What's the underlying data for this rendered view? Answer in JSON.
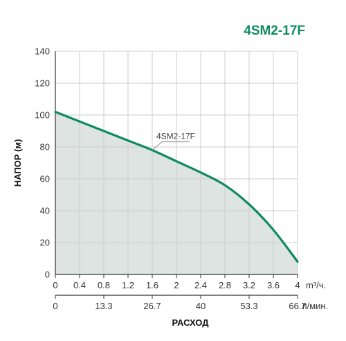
{
  "title": "4SM2-17F",
  "colors": {
    "accent": "#0e8c5e",
    "fill": "#dde4e2",
    "grid": "#cccccc",
    "axis": "#333333"
  },
  "chart_data": {
    "type": "area",
    "title": "4SM2-17F",
    "ylabel": "НАПОР (м)",
    "xlabel": "РАСХОД",
    "grid": true,
    "ylim": [
      0,
      140
    ],
    "xlim": [
      0,
      4
    ],
    "y_ticks": [
      "0",
      "20",
      "40",
      "60",
      "80",
      "100",
      "120",
      "140"
    ],
    "x_ticks_primary": [
      "0",
      "0.4",
      "0.8",
      "1.2",
      "1.6",
      "2",
      "2.4",
      "2.8",
      "3.2",
      "3.6",
      "4"
    ],
    "x_unit_primary": "m³/ч.",
    "x_ticks_secondary": [
      "0",
      "13.3",
      "26.7",
      "40",
      "53.3",
      "66.7"
    ],
    "x_unit_secondary": "л/мин.",
    "series": [
      {
        "name": "4SM2-17F",
        "x": [
          0,
          0.4,
          0.8,
          1.2,
          1.6,
          2.0,
          2.4,
          2.8,
          3.2,
          3.6,
          4.0
        ],
        "y": [
          102,
          96,
          90,
          84,
          78,
          71,
          64,
          56,
          44,
          28,
          8
        ]
      }
    ]
  }
}
